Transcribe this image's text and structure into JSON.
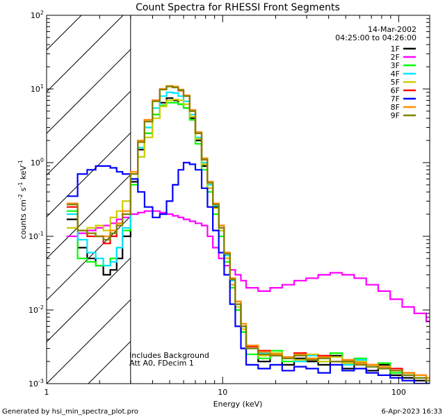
{
  "chart_data": {
    "type": "line",
    "title": "Count Spectra for RHESSI Front Segments",
    "xlabel": "Energy (keV)",
    "ylabel_parts": [
      "counts cm",
      "-2",
      " s",
      "-1",
      " keV",
      "-1"
    ],
    "x_scale": "log",
    "y_scale": "log",
    "xlim": [
      1.0,
      150.0
    ],
    "ylim": [
      0.001,
      100.0
    ],
    "x_tick_labels": [
      {
        "value": 1,
        "label": "1"
      },
      {
        "value": 10,
        "label": "10"
      },
      {
        "value": 100,
        "label": "100"
      }
    ],
    "y_tick_labels": [
      {
        "value": 0.001,
        "base": "10",
        "exp": "-3"
      },
      {
        "value": 0.01,
        "base": "10",
        "exp": "-2"
      },
      {
        "value": 0.1,
        "base": "10",
        "exp": "-1"
      },
      {
        "value": 1,
        "base": "10",
        "exp": "0"
      },
      {
        "value": 10,
        "base": "10",
        "exp": "1"
      },
      {
        "value": 100,
        "base": "10",
        "exp": "2"
      }
    ],
    "date": "14-Mar-2002",
    "time_range": "04:25:00 to 04:26:00",
    "annotations": [
      "Includes Background",
      "Att A0, FDecim 1"
    ],
    "hatched_region_x": [
      1.0,
      3.0
    ],
    "energy_bins": [
      1.3,
      1.5,
      1.7,
      1.9,
      2.1,
      2.3,
      2.5,
      2.7,
      3.0,
      3.3,
      3.6,
      4.0,
      4.4,
      4.8,
      5.2,
      5.6,
      6.0,
      6.5,
      7.0,
      7.6,
      8.2,
      8.8,
      9.5,
      10.2,
      11.0,
      11.8,
      12.7,
      13.6
    ],
    "series": [
      {
        "name": "1F",
        "color": "#000000",
        "values": [
          0.17,
          0.07,
          0.05,
          0.04,
          0.03,
          0.035,
          0.05,
          0.1,
          0.55,
          1.5,
          2.5,
          4.5,
          6.5,
          7.5,
          7.0,
          6.2,
          5.5,
          4.0,
          2.0,
          0.9,
          0.45,
          0.25,
          0.12,
          0.05,
          0.022,
          0.01,
          0.005,
          0.003
        ],
        "tail": [
          0.002,
          0.0025,
          0.0018,
          0.0022,
          0.002,
          0.0018,
          0.0024,
          0.0016,
          0.002,
          0.0015,
          0.0018,
          0.0013,
          0.0012,
          0.0011,
          0.001
        ]
      },
      {
        "name": "2F",
        "color": "#ff00ff",
        "values": [
          0.1,
          0.11,
          0.12,
          0.13,
          0.14,
          0.15,
          0.17,
          0.18,
          0.2,
          0.21,
          0.22,
          0.22,
          0.21,
          0.2,
          0.19,
          0.18,
          0.17,
          0.16,
          0.15,
          0.14,
          0.1,
          0.07,
          0.05,
          0.04,
          0.035,
          0.03,
          0.025,
          0.02
        ],
        "tail": [
          0.018,
          0.02,
          0.022,
          0.025,
          0.027,
          0.03,
          0.032,
          0.03,
          0.027,
          0.022,
          0.018,
          0.014,
          0.011,
          0.009,
          0.007
        ]
      },
      {
        "name": "3F",
        "color": "#00ff00",
        "values": [
          0.22,
          0.05,
          0.045,
          0.04,
          0.04,
          0.05,
          0.07,
          0.12,
          0.5,
          1.2,
          2.5,
          4.5,
          6.0,
          6.5,
          6.5,
          6.2,
          5.5,
          3.8,
          1.8,
          0.8,
          0.4,
          0.2,
          0.1,
          0.045,
          0.02,
          0.01,
          0.005,
          0.0025
        ],
        "tail": [
          0.0022,
          0.0028,
          0.002,
          0.0025,
          0.0022,
          0.002,
          0.0026,
          0.0018,
          0.0022,
          0.0017,
          0.0019,
          0.0014,
          0.0013,
          0.0012,
          0.0011
        ]
      },
      {
        "name": "4F",
        "color": "#00e5ff",
        "values": [
          0.2,
          0.09,
          0.06,
          0.05,
          0.04,
          0.045,
          0.07,
          0.13,
          0.6,
          1.6,
          3.0,
          5.5,
          8.0,
          9.0,
          8.8,
          8.0,
          6.8,
          4.5,
          2.2,
          1.0,
          0.5,
          0.26,
          0.13,
          0.055,
          0.025,
          0.012,
          0.006,
          0.003
        ],
        "tail": [
          0.0026,
          0.0024,
          0.0022,
          0.002,
          0.0024,
          0.0022,
          0.002,
          0.0018,
          0.0021,
          0.0017,
          0.0016,
          0.0015,
          0.0013,
          0.0012,
          0.0011
        ]
      },
      {
        "name": "5F",
        "color": "#cccc00",
        "values": [
          0.13,
          0.12,
          0.13,
          0.14,
          0.12,
          0.18,
          0.22,
          0.3,
          0.6,
          1.2,
          2.2,
          4.0,
          5.8,
          7.0,
          7.2,
          7.0,
          6.2,
          4.2,
          2.1,
          0.95,
          0.45,
          0.24,
          0.12,
          0.05,
          0.022,
          0.011,
          0.0055,
          0.003
        ],
        "tail": [
          0.0024,
          0.0026,
          0.0022,
          0.0021,
          0.0025,
          0.002,
          0.0023,
          0.0019,
          0.002,
          0.0018,
          0.0016,
          0.0015,
          0.0014,
          0.0012,
          0.0011
        ]
      },
      {
        "name": "6F",
        "color": "#ff0000",
        "values": [
          0.25,
          0.12,
          0.1,
          0.1,
          0.08,
          0.1,
          0.15,
          0.2,
          0.7,
          2.0,
          3.8,
          7.0,
          10.0,
          11.0,
          10.5,
          9.5,
          8.0,
          5.0,
          2.5,
          1.1,
          0.55,
          0.28,
          0.14,
          0.06,
          0.027,
          0.013,
          0.006,
          0.0032
        ],
        "tail": [
          0.0028,
          0.0025,
          0.0023,
          0.0026,
          0.0022,
          0.0024,
          0.002,
          0.0021,
          0.0019,
          0.0018,
          0.0017,
          0.0016,
          0.0014,
          0.0013,
          0.0012
        ]
      },
      {
        "name": "7F",
        "color": "#0000ff",
        "values": [
          0.35,
          0.7,
          0.8,
          0.9,
          0.9,
          0.85,
          0.75,
          0.7,
          0.6,
          0.4,
          0.25,
          0.18,
          0.2,
          0.3,
          0.5,
          0.8,
          1.0,
          0.95,
          0.8,
          0.45,
          0.25,
          0.12,
          0.06,
          0.03,
          0.012,
          0.006,
          0.003,
          0.0018
        ],
        "tail": [
          0.0016,
          0.0018,
          0.0015,
          0.0017,
          0.0016,
          0.0014,
          0.0018,
          0.0015,
          0.0016,
          0.0014,
          0.0013,
          0.0012,
          0.0011,
          0.001,
          0.001
        ]
      },
      {
        "name": "8F",
        "color": "#ff8c00",
        "values": [
          0.28,
          0.12,
          0.11,
          0.1,
          0.1,
          0.12,
          0.15,
          0.22,
          0.75,
          2.0,
          3.8,
          7.0,
          10.0,
          11.0,
          10.8,
          9.8,
          8.2,
          5.2,
          2.6,
          1.15,
          0.55,
          0.28,
          0.14,
          0.06,
          0.027,
          0.013,
          0.0065,
          0.0033
        ],
        "tail": [
          0.0027,
          0.0025,
          0.0023,
          0.0025,
          0.0022,
          0.0023,
          0.002,
          0.0021,
          0.0019,
          0.0018,
          0.0017,
          0.0015,
          0.0014,
          0.0013,
          0.0012
        ]
      },
      {
        "name": "9F",
        "color": "#808000",
        "values": [
          0.27,
          0.12,
          0.11,
          0.1,
          0.09,
          0.11,
          0.14,
          0.2,
          0.7,
          1.9,
          3.6,
          6.8,
          9.8,
          10.8,
          10.5,
          9.6,
          8.0,
          5.0,
          2.5,
          1.1,
          0.53,
          0.27,
          0.13,
          0.058,
          0.026,
          0.012,
          0.006,
          0.003
        ],
        "tail": [
          0.0025,
          0.0024,
          0.0022,
          0.0024,
          0.0021,
          0.0022,
          0.002,
          0.002,
          0.0018,
          0.0017,
          0.0016,
          0.0015,
          0.0013,
          0.0012,
          0.0011
        ]
      }
    ]
  },
  "footer": {
    "generated": "Generated by hsi_min_spectra_plot.pro",
    "timestamp": "6-Apr-2023 16:33"
  }
}
